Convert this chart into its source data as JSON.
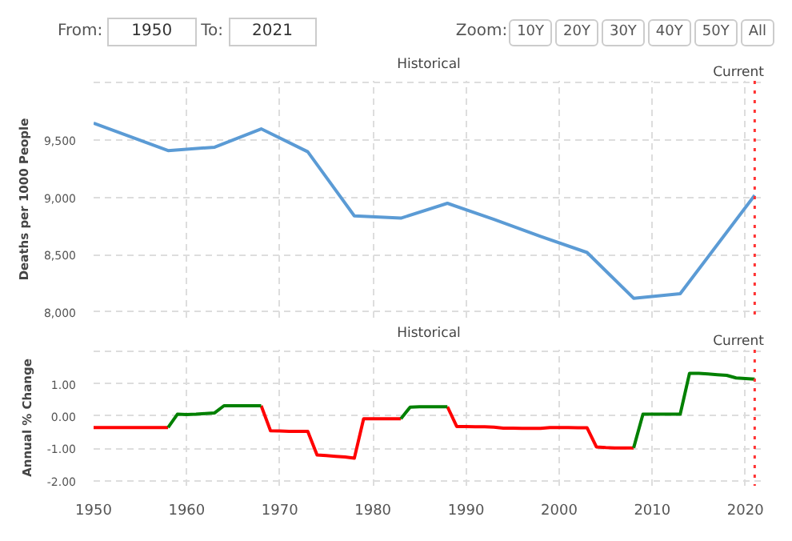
{
  "chart_data": [
    {
      "type": "line",
      "ylabel": "Deaths per 1000 People",
      "annotations": [
        "From:",
        "1950",
        "To:",
        "2021",
        "Zoom:",
        "10Y",
        "20Y",
        "30Y",
        "40Y",
        "50Y",
        "All",
        "Historical"
      ],
      "x": [
        1950,
        1958,
        1963,
        1968,
        1973,
        1978,
        1983,
        1988,
        1993,
        1998,
        2003,
        2008,
        2013,
        2021
      ],
      "series": [
        {
          "color": "#5b9bd5",
          "values": [
            9650,
            9410,
            9440,
            9600,
            9400,
            8840,
            8820,
            8950,
            8810,
            8660,
            8520,
            8120,
            8160,
            9020
          ]
        }
      ],
      "xlim": [
        1950,
        2022
      ],
      "xticks": [
        {
          "value": 1950,
          "label": null
        },
        {
          "value": 1960,
          "label": null
        },
        {
          "value": 1970,
          "label": null
        },
        {
          "value": 1980,
          "label": null
        },
        {
          "value": 1990,
          "label": null
        },
        {
          "value": 2000,
          "label": null
        },
        {
          "value": 2010,
          "label": null
        },
        {
          "value": 2020,
          "label": null
        }
      ],
      "ylim": [
        7950,
        10020
      ],
      "yticks": [
        {
          "value": 8000,
          "label": "8,000"
        },
        {
          "value": 8500,
          "label": "8,500"
        },
        {
          "value": 9000,
          "label": "9,000"
        },
        {
          "value": 9500,
          "label": "9,500"
        },
        {
          "value": 10000,
          "label": null
        }
      ],
      "ref_lines": [
        {
          "axis": "x",
          "value": 2021,
          "label": "Current",
          "color": "#ff3333",
          "line_style": "dotted"
        }
      ],
      "tick_labels": "y",
      "grid": true,
      "line_style": "solid"
    },
    {
      "type": "line",
      "ylabel": "Annual % Change",
      "annotations": [
        "Historical"
      ],
      "x": [
        1950,
        1951,
        1952,
        1953,
        1954,
        1955,
        1956,
        1957,
        1958,
        1959,
        1960,
        1961,
        1962,
        1963,
        1964,
        1965,
        1966,
        1967,
        1968,
        1969,
        1970,
        1971,
        1972,
        1973,
        1974,
        1975,
        1976,
        1977,
        1978,
        1979,
        1980,
        1981,
        1982,
        1983,
        1984,
        1985,
        1986,
        1987,
        1988,
        1989,
        1990,
        1991,
        1992,
        1993,
        1994,
        1995,
        1996,
        1997,
        1998,
        1999,
        2000,
        2001,
        2002,
        2003,
        2004,
        2005,
        2006,
        2007,
        2008,
        2009,
        2010,
        2011,
        2012,
        2013,
        2014,
        2015,
        2016,
        2017,
        2018,
        2019,
        2020,
        2021
      ],
      "series": [
        {
          "color": "#ff0000",
          "values": [
            -0.35,
            -0.35,
            -0.35,
            -0.35,
            -0.35,
            -0.35,
            -0.35,
            -0.35,
            -0.35,
            null,
            null,
            null,
            null,
            null,
            null,
            null,
            null,
            null,
            0.32,
            -0.45,
            -0.46,
            -0.47,
            -0.47,
            -0.47,
            -1.2,
            -1.22,
            -1.24,
            -1.26,
            -1.3,
            -0.08,
            -0.08,
            -0.08,
            -0.08,
            -0.08,
            null,
            null,
            null,
            null,
            0.29,
            -0.32,
            -0.32,
            -0.33,
            -0.33,
            -0.34,
            -0.37,
            -0.37,
            -0.38,
            -0.38,
            -0.38,
            -0.35,
            -0.35,
            -0.35,
            -0.36,
            -0.36,
            -0.95,
            -0.97,
            -0.98,
            -0.98,
            -0.98,
            null,
            null,
            null,
            null,
            null,
            null,
            null,
            null,
            null,
            null,
            null,
            null,
            null
          ]
        },
        {
          "color": "#008000",
          "values": [
            null,
            null,
            null,
            null,
            null,
            null,
            null,
            null,
            -0.35,
            0.06,
            0.05,
            0.06,
            0.08,
            0.1,
            0.32,
            0.32,
            0.32,
            0.32,
            0.32,
            null,
            null,
            null,
            null,
            null,
            null,
            null,
            null,
            null,
            null,
            null,
            null,
            null,
            null,
            -0.08,
            0.28,
            0.29,
            0.29,
            0.29,
            0.29,
            null,
            null,
            null,
            null,
            null,
            null,
            null,
            null,
            null,
            null,
            null,
            null,
            null,
            null,
            null,
            null,
            null,
            null,
            null,
            -0.98,
            0.06,
            0.06,
            0.06,
            0.06,
            0.06,
            1.32,
            1.32,
            1.3,
            1.28,
            1.26,
            1.18,
            1.16,
            1.14
          ]
        }
      ],
      "xlim": [
        1950,
        2022
      ],
      "xticks": [
        1950,
        1960,
        1970,
        1980,
        1990,
        2000,
        2010,
        2020
      ],
      "ylim": [
        -2.15,
        2.05
      ],
      "yticks": [
        {
          "value": -2,
          "label": "-2.00"
        },
        {
          "value": -1,
          "label": "-1.00"
        },
        {
          "value": 0,
          "label": "0.00"
        },
        {
          "value": 1,
          "label": "1.00"
        },
        {
          "value": 2,
          "label": null
        }
      ],
      "ref_lines": [
        {
          "axis": "x",
          "value": 2021,
          "label": "Current",
          "color": "#ff3333",
          "line_style": "dotted"
        }
      ],
      "grid": true,
      "line_style": "solid"
    }
  ]
}
